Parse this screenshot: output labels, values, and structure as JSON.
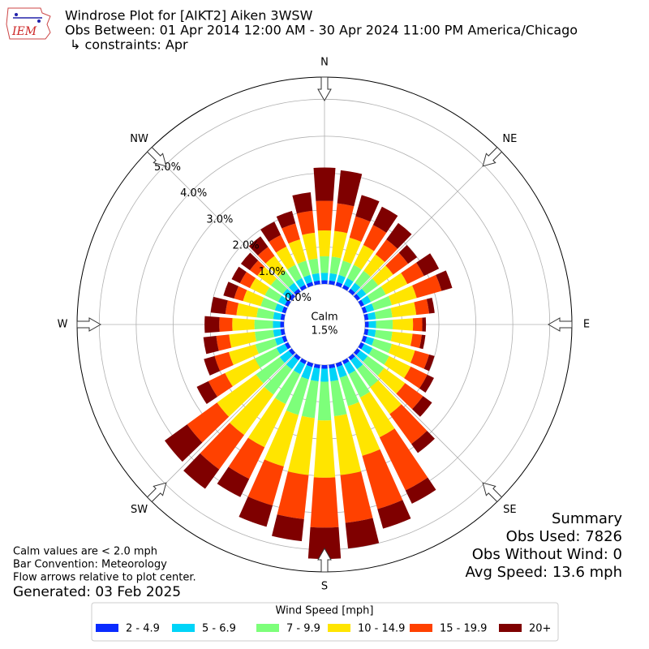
{
  "chart_data": {
    "type": "windrose",
    "title_lines": [
      "Windrose Plot for [AIKT2] Aiken 3WSW",
      "Obs Between: 01 Apr 2014 12:00 AM - 30 Apr 2024 11:00 PM America/Chicago",
      "↳ constraints: Apr"
    ],
    "logo_text": "IEM",
    "calm_label": "Calm",
    "calm_value": "1.5%",
    "notes": [
      "Calm values are < 2.0 mph",
      "Bar Convention: Meteorology",
      "Flow arrows relative to plot center."
    ],
    "generated": "Generated: 03 Feb 2025",
    "summary": [
      "Summary",
      "Obs Used: 7826",
      "Obs Without Wind: 0",
      "Avg Speed: 13.6 mph"
    ],
    "legend_title": "Wind Speed [mph]",
    "x": [
      0,
      10,
      20,
      30,
      40,
      50,
      60,
      70,
      80,
      90,
      100,
      110,
      120,
      130,
      140,
      150,
      160,
      170,
      180,
      190,
      200,
      210,
      220,
      230,
      240,
      250,
      260,
      270,
      280,
      290,
      300,
      310,
      320,
      330,
      340,
      350
    ],
    "xticks": [
      {
        "value": 0,
        "label": "N"
      },
      {
        "value": 45,
        "label": "NE"
      },
      {
        "value": 90,
        "label": "E"
      },
      {
        "value": 135,
        "label": "SE"
      },
      {
        "value": 180,
        "label": "S"
      },
      {
        "value": 225,
        "label": "SW"
      },
      {
        "value": 270,
        "label": "W"
      },
      {
        "value": 315,
        "label": "NW"
      }
    ],
    "ylim": [
      0,
      5.6
    ],
    "yticks": [
      {
        "value": 0,
        "label": "0.0%"
      },
      {
        "value": 1,
        "label": "1.0%"
      },
      {
        "value": 2,
        "label": "2.0%"
      },
      {
        "value": 3,
        "label": "3.0%"
      },
      {
        "value": 4,
        "label": "4.0%"
      },
      {
        "value": 5,
        "label": "5.0%"
      }
    ],
    "grid": true,
    "series": [
      {
        "name": "2 - 4.9",
        "color": "#0a2bff",
        "values": [
          0.1,
          0.1,
          0.1,
          0.1,
          0.1,
          0.1,
          0.1,
          0.1,
          0.1,
          0.1,
          0.1,
          0.1,
          0.1,
          0.1,
          0.1,
          0.1,
          0.1,
          0.1,
          0.1,
          0.1,
          0.1,
          0.1,
          0.1,
          0.1,
          0.1,
          0.1,
          0.1,
          0.1,
          0.1,
          0.1,
          0.1,
          0.1,
          0.1,
          0.1,
          0.1,
          0.1
        ]
      },
      {
        "name": "5 - 6.9",
        "color": "#00d4f8",
        "values": [
          0.2,
          0.2,
          0.2,
          0.2,
          0.2,
          0.2,
          0.2,
          0.2,
          0.2,
          0.2,
          0.2,
          0.2,
          0.25,
          0.25,
          0.3,
          0.3,
          0.3,
          0.35,
          0.35,
          0.35,
          0.35,
          0.3,
          0.3,
          0.3,
          0.25,
          0.2,
          0.2,
          0.2,
          0.2,
          0.2,
          0.2,
          0.2,
          0.2,
          0.2,
          0.2,
          0.2
        ]
      },
      {
        "name": "7 - 9.9",
        "color": "#7dff7a",
        "values": [
          0.45,
          0.45,
          0.4,
          0.4,
          0.4,
          0.4,
          0.45,
          0.5,
          0.45,
          0.45,
          0.45,
          0.5,
          0.5,
          0.55,
          0.6,
          0.7,
          0.8,
          0.95,
          1.05,
          1.0,
          1.0,
          0.9,
          0.85,
          0.8,
          0.65,
          0.55,
          0.5,
          0.5,
          0.45,
          0.4,
          0.4,
          0.4,
          0.4,
          0.4,
          0.4,
          0.4
        ]
      },
      {
        "name": "10 - 14.9",
        "color": "#ffe500",
        "values": [
          0.7,
          0.7,
          0.65,
          0.6,
          0.55,
          0.5,
          0.65,
          0.7,
          0.65,
          0.55,
          0.55,
          0.65,
          0.65,
          0.7,
          0.9,
          1.2,
          1.4,
          1.6,
          1.55,
          1.55,
          1.45,
          1.3,
          1.35,
          1.3,
          0.9,
          0.75,
          0.7,
          0.6,
          0.55,
          0.5,
          0.45,
          0.45,
          0.5,
          0.55,
          0.6,
          0.7
        ]
      },
      {
        "name": "15 - 19.9",
        "color": "#ff4100",
        "values": [
          0.8,
          0.75,
          0.6,
          0.6,
          0.5,
          0.5,
          0.5,
          0.7,
          0.35,
          0.25,
          0.25,
          0.4,
          0.5,
          0.6,
          1.0,
          1.6,
          1.5,
          1.3,
          1.35,
          1.2,
          1.1,
          0.95,
          1.15,
          1.0,
          0.5,
          0.4,
          0.35,
          0.35,
          0.3,
          0.25,
          0.3,
          0.25,
          0.3,
          0.35,
          0.45,
          0.6
        ]
      },
      {
        "name": "20+",
        "color": "#7f0000",
        "values": [
          0.9,
          0.9,
          0.6,
          0.55,
          0.55,
          0.3,
          0.45,
          0.3,
          0.15,
          0.1,
          0.1,
          0.15,
          0.2,
          0.3,
          0.3,
          0.4,
          0.55,
          0.7,
          0.85,
          0.6,
          0.6,
          0.55,
          0.65,
          0.75,
          0.35,
          0.3,
          0.35,
          0.4,
          0.4,
          0.3,
          0.25,
          0.3,
          0.35,
          0.4,
          0.35,
          0.5
        ]
      }
    ]
  }
}
